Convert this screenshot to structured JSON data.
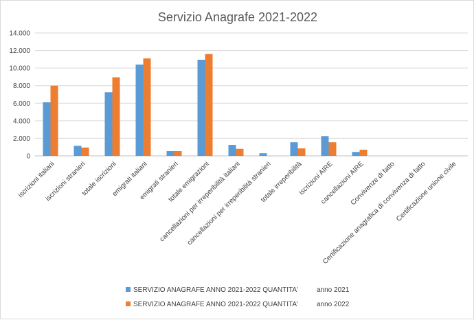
{
  "chart_data": {
    "type": "bar",
    "title": "Servizio Anagrafe 2021-2022",
    "xlabel": "",
    "ylabel": "",
    "ylim": [
      0,
      14000
    ],
    "yticks": [
      0,
      2000,
      4000,
      6000,
      8000,
      10000,
      12000,
      14000
    ],
    "ytick_labels": [
      "0",
      "2.000",
      "4.000",
      "6.000",
      "8.000",
      "10.000",
      "12.000",
      "14.000"
    ],
    "grid": true,
    "legend_position": "bottom",
    "categories": [
      "iscrizioni italiani",
      "iscrizioni stranieri",
      "totale iscrizioni",
      "emigrati italiani",
      "emigrati stranieri",
      "totale emigrazioni",
      "cancellazioni per irreperibilità italiani",
      "cancellazioni per irreperibilità stranieri",
      "totale irreperibilità",
      "iscrizioni AIRE",
      "cancellazioni AIRE",
      "Convivenze di fatto",
      "Certificazione anagrafica di convivenza di fatto",
      "Certificazione unione civile"
    ],
    "series": [
      {
        "name": "SERVIZIO ANAGRAFE ANNO 2021-2022 QUANTITA'",
        "suffix": "anno 2021",
        "color": "#5b9bd5",
        "values": [
          6100,
          1150,
          7250,
          10400,
          550,
          10950,
          1250,
          300,
          1550,
          2250,
          450,
          0,
          0,
          0
        ]
      },
      {
        "name": "SERVIZIO ANAGRAFE ANNO 2021-2022 QUANTITA'",
        "suffix": "anno 2022",
        "color": "#ed7d31",
        "values": [
          8000,
          950,
          8950,
          11100,
          550,
          11600,
          800,
          0,
          850,
          1550,
          700,
          0,
          0,
          0
        ]
      }
    ]
  }
}
